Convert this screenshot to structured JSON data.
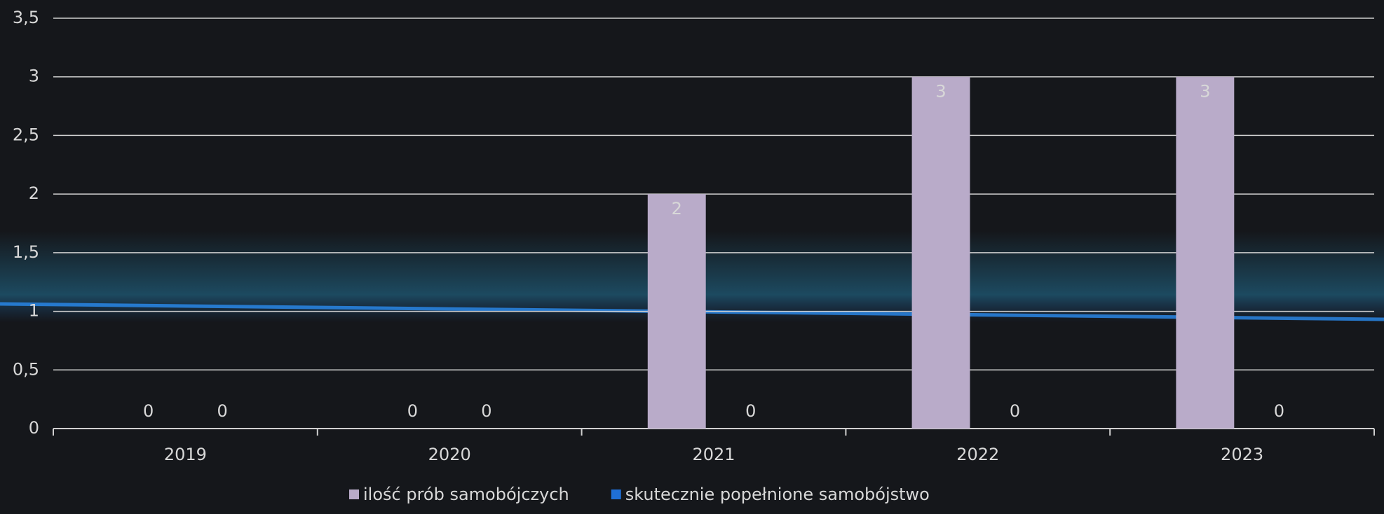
{
  "chart_data": {
    "type": "bar",
    "categories": [
      "2019",
      "2020",
      "2021",
      "2022",
      "2023"
    ],
    "series": [
      {
        "name": "ilość prób samobójczych",
        "color": "#b9abc9",
        "values": [
          0,
          0,
          2,
          3,
          3
        ]
      },
      {
        "name": "skutecznie popełnione samobójstwo",
        "color": "#1f6fd6",
        "values": [
          0,
          0,
          0,
          0,
          0
        ]
      }
    ],
    "ylim": [
      0,
      3.5
    ],
    "yticks": [
      0,
      {
        "value": 0.5,
        "label": "0,5"
      },
      1,
      {
        "value": 1.5,
        "label": "1,5"
      },
      2,
      {
        "value": 2.5,
        "label": "2,5"
      },
      3,
      {
        "value": 3.5,
        "label": "3,5"
      }
    ],
    "grid": true,
    "data_labels": true,
    "legend": "bottom"
  }
}
